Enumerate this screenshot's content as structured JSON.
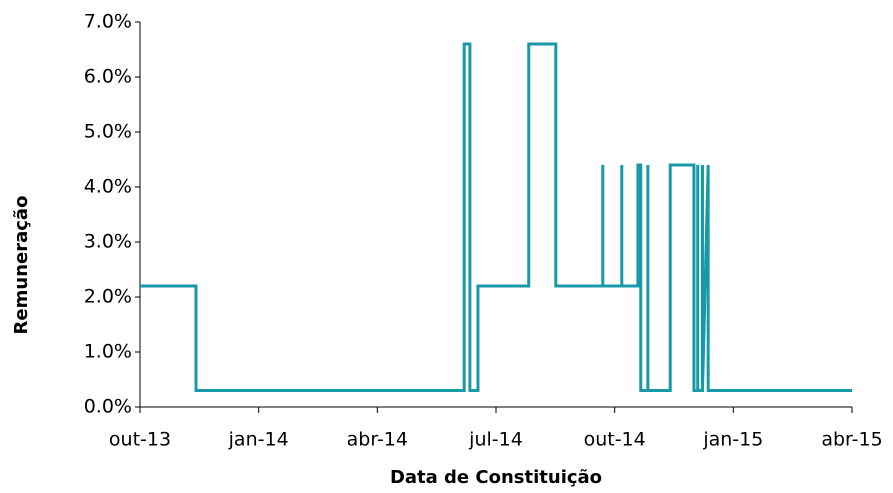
{
  "chart_data": {
    "type": "line",
    "xlabel": "Data de Constituição",
    "ylabel": "Remuneração",
    "x": [
      2013.75,
      2013.868,
      2013.868,
      2014.433,
      2014.433,
      2014.445,
      2014.445,
      2014.462,
      2014.462,
      2014.569,
      2014.569,
      2014.626,
      2014.626,
      2014.725,
      2014.725,
      2014.725,
      2014.765,
      2014.765,
      2014.765,
      2014.799,
      2014.799,
      2014.805,
      2014.805,
      2014.82,
      2014.82,
      2014.82,
      2014.867,
      2014.867,
      2014.917,
      2014.917,
      2014.925,
      2014.925,
      2014.925,
      2014.935,
      2014.935,
      2014.935,
      2014.947,
      2014.947,
      2015.25
    ],
    "series": [
      {
        "name": "Remuneração",
        "color": "#1799a8",
        "values": [
          2.2,
          2.2,
          0.3,
          0.3,
          6.6,
          6.6,
          0.3,
          0.3,
          2.2,
          2.2,
          6.6,
          6.6,
          2.2,
          2.2,
          4.4,
          2.2,
          2.2,
          4.4,
          2.2,
          2.2,
          4.4,
          4.4,
          0.3,
          0.3,
          4.4,
          0.3,
          0.3,
          4.4,
          4.4,
          0.3,
          0.3,
          4.4,
          0.3,
          0.3,
          4.4,
          0.3,
          4.4,
          0.3,
          0.3
        ]
      }
    ],
    "xlim": [
      2013.75,
      2015.25
    ],
    "xticks": [
      {
        "value": 2013.75,
        "label": "out-13"
      },
      {
        "value": 2014.0,
        "label": "jan-14"
      },
      {
        "value": 2014.25,
        "label": "abr-14"
      },
      {
        "value": 2014.5,
        "label": "jul-14"
      },
      {
        "value": 2014.75,
        "label": "out-14"
      },
      {
        "value": 2015.0,
        "label": "jan-15"
      },
      {
        "value": 2015.25,
        "label": "abr-15"
      }
    ],
    "ylim": [
      0,
      7
    ],
    "yticks": [
      {
        "value": 0,
        "label": "0.0%"
      },
      {
        "value": 1,
        "label": "1.0%"
      },
      {
        "value": 2,
        "label": "2.0%"
      },
      {
        "value": 3,
        "label": "3.0%"
      },
      {
        "value": 4,
        "label": "4.0%"
      },
      {
        "value": 5,
        "label": "5.0%"
      },
      {
        "value": 6,
        "label": "6.0%"
      },
      {
        "value": 7,
        "label": "7.0%"
      }
    ],
    "grid": false
  }
}
